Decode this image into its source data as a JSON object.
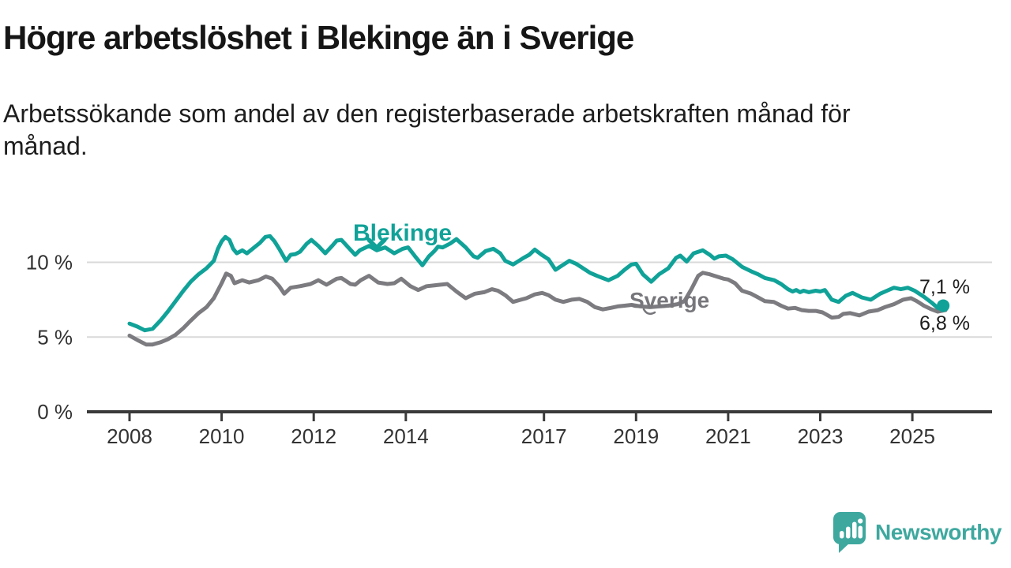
{
  "page": {
    "title": "Högre arbetslöshet i Blekinge än i Sverige",
    "subtitle": "Arbetssökande som andel av den registerbaserade arbetskraften månad för månad."
  },
  "branding": {
    "logo_text": "Newsworthy",
    "logo_icon": "speech-bubble-bar-chart-icon",
    "logo_color": "#3ea89f"
  },
  "colors": {
    "blekinge": "#10a298",
    "sverige": "#7c7c80",
    "sverige_label": "#76767b",
    "grid": "#d9d9d9",
    "axis": "#3a3a3a",
    "tick_text": "#333333",
    "value_text": "#1c1c1c"
  },
  "chart_data": {
    "type": "line",
    "title": "Högre arbetslöshet i Blekinge än i Sverige",
    "x_unit": "decimal_year_monthly",
    "x_axis": {
      "tick_values": [
        2008,
        2010,
        2012,
        2014,
        2017,
        2019,
        2021,
        2023,
        2025
      ],
      "tick_labels": [
        "2008",
        "2010",
        "2012",
        "2014",
        "2017",
        "2019",
        "2021",
        "2023",
        "2025"
      ],
      "range": [
        2007.1,
        2026.7
      ]
    },
    "y_axis": {
      "tick_values": [
        0,
        5,
        10
      ],
      "tick_labels": [
        "0 %",
        "5 %",
        "10 %"
      ],
      "gridline_values": [
        5,
        10
      ],
      "range": [
        0,
        13
      ],
      "unit": "%"
    },
    "series": [
      {
        "name": "Blekinge",
        "color": "#10a298",
        "end_value_label": "7,1 %",
        "end_marker": true,
        "points": [
          [
            2008.0,
            5.9
          ],
          [
            2008.17,
            5.7
          ],
          [
            2008.33,
            5.45
          ],
          [
            2008.5,
            5.55
          ],
          [
            2008.67,
            6.1
          ],
          [
            2008.83,
            6.7
          ],
          [
            2009.0,
            7.4
          ],
          [
            2009.17,
            8.1
          ],
          [
            2009.33,
            8.7
          ],
          [
            2009.5,
            9.2
          ],
          [
            2009.67,
            9.6
          ],
          [
            2009.83,
            10.1
          ],
          [
            2009.92,
            10.9
          ],
          [
            2010.0,
            11.4
          ],
          [
            2010.08,
            11.7
          ],
          [
            2010.17,
            11.5
          ],
          [
            2010.25,
            10.9
          ],
          [
            2010.33,
            10.6
          ],
          [
            2010.45,
            10.8
          ],
          [
            2010.55,
            10.6
          ],
          [
            2010.67,
            10.9
          ],
          [
            2010.75,
            11.1
          ],
          [
            2010.83,
            11.3
          ],
          [
            2010.95,
            11.7
          ],
          [
            2011.05,
            11.75
          ],
          [
            2011.15,
            11.4
          ],
          [
            2011.25,
            10.9
          ],
          [
            2011.4,
            10.1
          ],
          [
            2011.5,
            10.5
          ],
          [
            2011.6,
            10.55
          ],
          [
            2011.7,
            10.7
          ],
          [
            2011.85,
            11.25
          ],
          [
            2011.95,
            11.5
          ],
          [
            2012.1,
            11.1
          ],
          [
            2012.25,
            10.6
          ],
          [
            2012.4,
            11.1
          ],
          [
            2012.5,
            11.45
          ],
          [
            2012.6,
            11.5
          ],
          [
            2012.75,
            11.0
          ],
          [
            2012.9,
            10.5
          ],
          [
            2013.0,
            10.8
          ],
          [
            2013.2,
            11.1
          ],
          [
            2013.37,
            10.8
          ],
          [
            2013.55,
            11.0
          ],
          [
            2013.75,
            10.6
          ],
          [
            2013.93,
            10.9
          ],
          [
            2014.05,
            11.0
          ],
          [
            2014.2,
            10.4
          ],
          [
            2014.36,
            9.8
          ],
          [
            2014.5,
            10.4
          ],
          [
            2014.62,
            10.75
          ],
          [
            2014.7,
            11.05
          ],
          [
            2014.8,
            11.0
          ],
          [
            2014.96,
            11.25
          ],
          [
            2015.1,
            11.55
          ],
          [
            2015.3,
            11.0
          ],
          [
            2015.47,
            10.4
          ],
          [
            2015.56,
            10.3
          ],
          [
            2015.73,
            10.75
          ],
          [
            2015.9,
            10.9
          ],
          [
            2016.05,
            10.6
          ],
          [
            2016.16,
            10.1
          ],
          [
            2016.33,
            9.85
          ],
          [
            2016.56,
            10.3
          ],
          [
            2016.68,
            10.5
          ],
          [
            2016.8,
            10.85
          ],
          [
            2016.95,
            10.5
          ],
          [
            2017.1,
            10.2
          ],
          [
            2017.25,
            9.5
          ],
          [
            2017.4,
            9.8
          ],
          [
            2017.55,
            10.1
          ],
          [
            2017.7,
            9.9
          ],
          [
            2017.85,
            9.6
          ],
          [
            2018.0,
            9.3
          ],
          [
            2018.15,
            9.1
          ],
          [
            2018.4,
            8.8
          ],
          [
            2018.6,
            9.1
          ],
          [
            2018.75,
            9.5
          ],
          [
            2018.9,
            9.85
          ],
          [
            2019.0,
            9.9
          ],
          [
            2019.15,
            9.2
          ],
          [
            2019.33,
            8.7
          ],
          [
            2019.5,
            9.2
          ],
          [
            2019.7,
            9.6
          ],
          [
            2019.87,
            10.3
          ],
          [
            2019.96,
            10.45
          ],
          [
            2020.1,
            10.05
          ],
          [
            2020.25,
            10.6
          ],
          [
            2020.45,
            10.8
          ],
          [
            2020.6,
            10.5
          ],
          [
            2020.7,
            10.25
          ],
          [
            2020.8,
            10.4
          ],
          [
            2020.95,
            10.45
          ],
          [
            2021.1,
            10.2
          ],
          [
            2021.3,
            9.7
          ],
          [
            2021.5,
            9.4
          ],
          [
            2021.65,
            9.2
          ],
          [
            2021.8,
            8.95
          ],
          [
            2022.0,
            8.8
          ],
          [
            2022.15,
            8.55
          ],
          [
            2022.3,
            8.2
          ],
          [
            2022.4,
            8.05
          ],
          [
            2022.48,
            8.15
          ],
          [
            2022.56,
            8.0
          ],
          [
            2022.64,
            8.1
          ],
          [
            2022.75,
            8.0
          ],
          [
            2022.9,
            8.1
          ],
          [
            2023.0,
            8.05
          ],
          [
            2023.1,
            8.15
          ],
          [
            2023.25,
            7.5
          ],
          [
            2023.4,
            7.35
          ],
          [
            2023.55,
            7.75
          ],
          [
            2023.7,
            7.95
          ],
          [
            2023.9,
            7.65
          ],
          [
            2024.1,
            7.5
          ],
          [
            2024.3,
            7.9
          ],
          [
            2024.45,
            8.1
          ],
          [
            2024.6,
            8.3
          ],
          [
            2024.75,
            8.2
          ],
          [
            2024.9,
            8.3
          ],
          [
            2025.05,
            8.1
          ],
          [
            2025.25,
            7.7
          ],
          [
            2025.42,
            7.3
          ],
          [
            2025.55,
            6.95
          ],
          [
            2025.67,
            7.1
          ]
        ]
      },
      {
        "name": "Sverige",
        "color": "#7c7c80",
        "end_value_label": "6,8 %",
        "end_marker": false,
        "points": [
          [
            2008.0,
            5.1
          ],
          [
            2008.17,
            4.8
          ],
          [
            2008.36,
            4.5
          ],
          [
            2008.5,
            4.5
          ],
          [
            2008.67,
            4.65
          ],
          [
            2008.83,
            4.85
          ],
          [
            2009.0,
            5.15
          ],
          [
            2009.17,
            5.6
          ],
          [
            2009.33,
            6.1
          ],
          [
            2009.5,
            6.6
          ],
          [
            2009.67,
            7.0
          ],
          [
            2009.83,
            7.6
          ],
          [
            2010.0,
            8.6
          ],
          [
            2010.1,
            9.25
          ],
          [
            2010.2,
            9.1
          ],
          [
            2010.28,
            8.6
          ],
          [
            2010.45,
            8.8
          ],
          [
            2010.6,
            8.65
          ],
          [
            2010.8,
            8.8
          ],
          [
            2010.96,
            9.05
          ],
          [
            2011.1,
            8.9
          ],
          [
            2011.25,
            8.4
          ],
          [
            2011.36,
            7.9
          ],
          [
            2011.5,
            8.3
          ],
          [
            2011.7,
            8.4
          ],
          [
            2011.93,
            8.55
          ],
          [
            2012.1,
            8.8
          ],
          [
            2012.28,
            8.5
          ],
          [
            2012.5,
            8.9
          ],
          [
            2012.6,
            8.95
          ],
          [
            2012.8,
            8.55
          ],
          [
            2012.9,
            8.5
          ],
          [
            2013.02,
            8.8
          ],
          [
            2013.2,
            9.1
          ],
          [
            2013.4,
            8.65
          ],
          [
            2013.6,
            8.55
          ],
          [
            2013.75,
            8.6
          ],
          [
            2013.9,
            8.9
          ],
          [
            2014.1,
            8.4
          ],
          [
            2014.27,
            8.15
          ],
          [
            2014.45,
            8.4
          ],
          [
            2014.6,
            8.45
          ],
          [
            2014.75,
            8.5
          ],
          [
            2014.9,
            8.55
          ],
          [
            2015.1,
            8.05
          ],
          [
            2015.3,
            7.6
          ],
          [
            2015.5,
            7.9
          ],
          [
            2015.7,
            8.0
          ],
          [
            2015.87,
            8.2
          ],
          [
            2016.0,
            8.1
          ],
          [
            2016.16,
            7.8
          ],
          [
            2016.33,
            7.35
          ],
          [
            2016.5,
            7.5
          ],
          [
            2016.62,
            7.6
          ],
          [
            2016.8,
            7.85
          ],
          [
            2016.96,
            7.95
          ],
          [
            2017.1,
            7.8
          ],
          [
            2017.25,
            7.5
          ],
          [
            2017.42,
            7.35
          ],
          [
            2017.6,
            7.5
          ],
          [
            2017.77,
            7.55
          ],
          [
            2017.94,
            7.35
          ],
          [
            2018.11,
            7.0
          ],
          [
            2018.28,
            6.85
          ],
          [
            2018.45,
            6.95
          ],
          [
            2018.6,
            7.05
          ],
          [
            2018.75,
            7.1
          ],
          [
            2018.9,
            7.15
          ],
          [
            2019.1,
            7.05
          ],
          [
            2019.3,
            7.0
          ],
          [
            2019.5,
            7.05
          ],
          [
            2019.7,
            7.1
          ],
          [
            2019.9,
            7.2
          ],
          [
            2020.05,
            7.4
          ],
          [
            2020.2,
            8.2
          ],
          [
            2020.35,
            9.1
          ],
          [
            2020.45,
            9.3
          ],
          [
            2020.6,
            9.2
          ],
          [
            2020.75,
            9.05
          ],
          [
            2020.9,
            8.9
          ],
          [
            2021.0,
            8.85
          ],
          [
            2021.15,
            8.6
          ],
          [
            2021.3,
            8.1
          ],
          [
            2021.5,
            7.9
          ],
          [
            2021.65,
            7.65
          ],
          [
            2021.8,
            7.4
          ],
          [
            2021.99,
            7.35
          ],
          [
            2022.15,
            7.1
          ],
          [
            2022.3,
            6.9
          ],
          [
            2022.45,
            6.95
          ],
          [
            2022.6,
            6.8
          ],
          [
            2022.75,
            6.75
          ],
          [
            2022.9,
            6.75
          ],
          [
            2023.05,
            6.65
          ],
          [
            2023.25,
            6.3
          ],
          [
            2023.4,
            6.35
          ],
          [
            2023.5,
            6.55
          ],
          [
            2023.65,
            6.6
          ],
          [
            2023.85,
            6.45
          ],
          [
            2024.05,
            6.7
          ],
          [
            2024.25,
            6.8
          ],
          [
            2024.4,
            7.0
          ],
          [
            2024.6,
            7.2
          ],
          [
            2024.8,
            7.5
          ],
          [
            2024.97,
            7.6
          ],
          [
            2025.1,
            7.4
          ],
          [
            2025.25,
            7.1
          ],
          [
            2025.42,
            6.85
          ],
          [
            2025.55,
            6.7
          ],
          [
            2025.72,
            6.8
          ]
        ]
      }
    ],
    "legend_position": "inline-series-labels",
    "grid": "horizontal-only"
  }
}
